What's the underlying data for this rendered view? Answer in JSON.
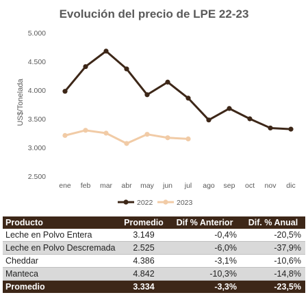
{
  "chart_data": {
    "type": "line",
    "title": "Evolución del precio de LPE 22-23",
    "ylabel": "US$/Tonelada",
    "xlabel": "",
    "categories": [
      "ene",
      "feb",
      "mar",
      "abr",
      "may",
      "jun",
      "jul",
      "ago",
      "sep",
      "oct",
      "nov",
      "dic"
    ],
    "ylim": [
      2500,
      5000
    ],
    "yticks": [
      2500,
      3000,
      3500,
      4000,
      4500,
      5000
    ],
    "ytick_labels": [
      "2.500",
      "3.000",
      "3.500",
      "4.000",
      "4.500",
      "5.000"
    ],
    "grid": false,
    "legend_position": "bottom",
    "series": [
      {
        "name": "2022",
        "color": "#3d2718",
        "values": [
          3980,
          4410,
          4680,
          4370,
          3920,
          4140,
          3860,
          3480,
          3680,
          3500,
          3340,
          3320
        ]
      },
      {
        "name": "2023",
        "color": "#f1cba6",
        "values": [
          3210,
          3300,
          3250,
          3070,
          3230,
          3170,
          3150,
          null,
          null,
          null,
          null,
          null
        ]
      }
    ]
  },
  "table": {
    "headers": [
      "Producto",
      "Promedio",
      "Dif % Anterior",
      "Dif. % Anual"
    ],
    "rows": [
      [
        "Leche en Polvo Entera",
        "3.149",
        "-0,4%",
        "-20,5%"
      ],
      [
        "Leche en Polvo Descremada",
        "2.525",
        "-6,0%",
        "-37,9%"
      ],
      [
        "Cheddar",
        "4.386",
        "-3,1%",
        "-10,6%"
      ],
      [
        "Manteca",
        "4.842",
        "-10,3%",
        "-14,8%"
      ]
    ],
    "footer": [
      "Promedio",
      "3.334",
      "-3,3%",
      "-23,5%"
    ]
  }
}
